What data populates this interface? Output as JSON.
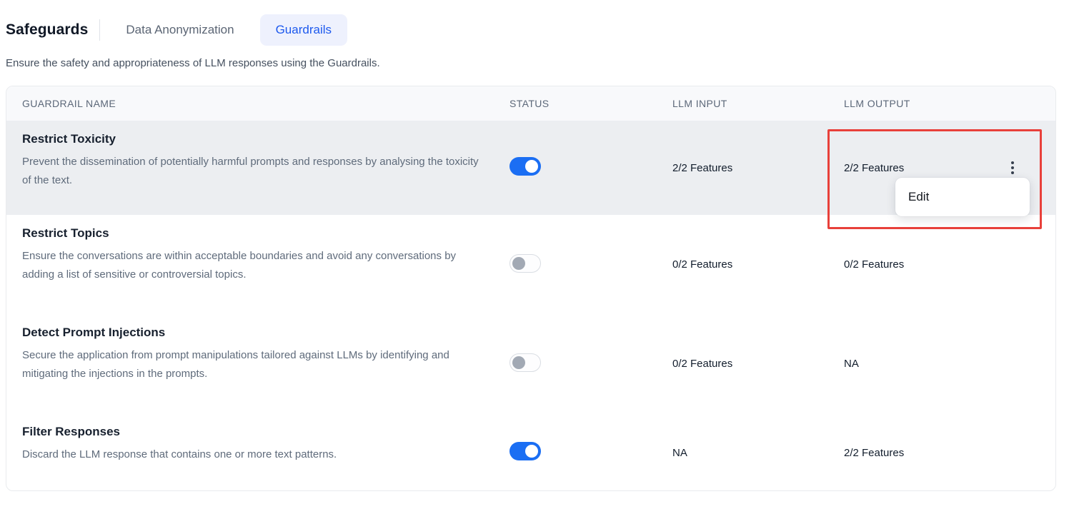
{
  "page": {
    "title": "Safeguards",
    "subtitle": "Ensure the safety and appropriateness of LLM responses using the Guardrails.",
    "tabs": [
      {
        "label": "Data Anonymization",
        "active": false
      },
      {
        "label": "Guardrails",
        "active": true
      }
    ]
  },
  "table": {
    "columns": [
      "Guardrail Name",
      "Status",
      "LLM Input",
      "LLM Output"
    ],
    "rows": [
      {
        "name": "Restrict Toxicity",
        "description": "Prevent the dissemination of potentially harmful prompts and responses by analysing the toxicity of the text.",
        "status_on": true,
        "llm_input": "2/2 Features",
        "llm_output": "2/2 Features",
        "highlighted": true,
        "menu_open": true
      },
      {
        "name": "Restrict Topics",
        "description": "Ensure the conversations are within acceptable boundaries and avoid any conversations by adding a list of sensitive or controversial topics.",
        "status_on": false,
        "llm_input": "0/2 Features",
        "llm_output": "0/2 Features",
        "highlighted": false,
        "menu_open": false
      },
      {
        "name": "Detect Prompt Injections",
        "description": "Secure the application from prompt manipulations tailored against LLMs by identifying and mitigating the injections in the prompts.",
        "status_on": false,
        "llm_input": "0/2 Features",
        "llm_output": "NA",
        "highlighted": false,
        "menu_open": false
      },
      {
        "name": "Filter Responses",
        "description": "Discard the LLM response that contains one or more text patterns.",
        "status_on": true,
        "llm_input": "NA",
        "llm_output": "2/2 Features",
        "highlighted": false,
        "menu_open": false
      }
    ]
  },
  "context_menu": {
    "items": [
      {
        "label": "Edit"
      }
    ]
  },
  "colors": {
    "accent_blue": "#1b6ef3",
    "tab_active_bg": "#eef1fd",
    "tab_active_text": "#1d59ee",
    "row_highlight": "#eceef1",
    "annotation_red": "#e8403a"
  }
}
